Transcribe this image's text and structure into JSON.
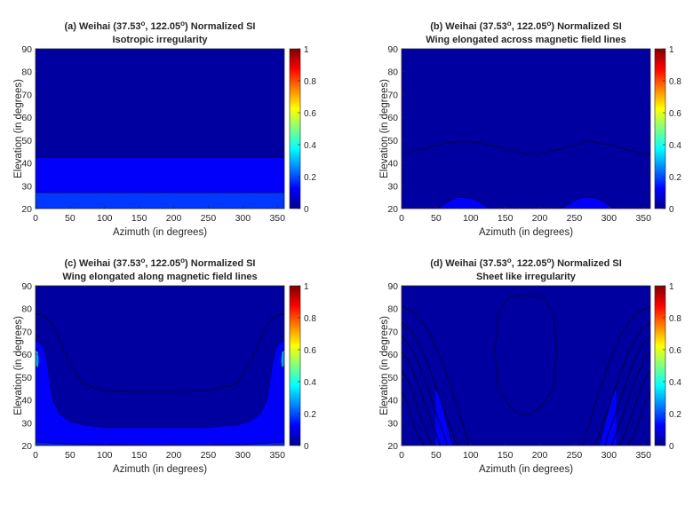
{
  "colormap": [
    "#00008f",
    "#0000ff",
    "#0080ff",
    "#00ffff",
    "#80ff80",
    "#ffff00",
    "#ff8000",
    "#ff0000",
    "#800000"
  ],
  "chart_data": [
    {
      "type": "heatmap",
      "title_station": "(a) Weihai (37.53",
      "title_mid": ", 122.05",
      "title_end": ") Normalized SI",
      "subtitle": "Isotropic irregularity",
      "xlabel": "Azimuth (in degrees)",
      "ylabel": "Elevation (in degrees)",
      "xlim": [
        0,
        360
      ],
      "ylim": [
        20,
        90
      ],
      "x_ticks": [
        0,
        50,
        100,
        150,
        200,
        250,
        300,
        350
      ],
      "y_ticks": [
        20,
        30,
        40,
        50,
        60,
        70,
        80,
        90
      ],
      "colorbar_ticks": [
        0,
        0.2,
        0.4,
        0.6,
        0.8,
        1
      ],
      "zlim": [
        0,
        1
      ],
      "elevation_bands": [
        {
          "el_from": 42.5,
          "el_to": 90,
          "si_level": 0.02
        },
        {
          "el_from": 27,
          "el_to": 42.5,
          "si_level": 0.12
        },
        {
          "el_from": 20,
          "el_to": 27,
          "si_level": 0.18
        }
      ]
    },
    {
      "type": "heatmap",
      "title_station": "(b) Weihai (37.53",
      "title_mid": ", 122.05",
      "title_end": ") Normalized SI",
      "subtitle": "Wing elongated across magnetic field lines",
      "xlabel": "Azimuth (in degrees)",
      "ylabel": "Elevation (in degrees)",
      "xlim": [
        0,
        360
      ],
      "ylim": [
        20,
        90
      ],
      "x_ticks": [
        0,
        50,
        100,
        150,
        200,
        250,
        300,
        350
      ],
      "y_ticks": [
        20,
        30,
        40,
        50,
        60,
        70,
        80,
        90
      ],
      "colorbar_ticks": [
        0,
        0.2,
        0.4,
        0.6,
        0.8,
        1
      ],
      "zlim": [
        0,
        1
      ],
      "contour_lines": [
        {
          "azimuth": [
            0,
            30,
            60,
            90,
            120,
            150,
            180,
            200,
            230,
            270,
            300,
            330,
            360
          ],
          "elevation": [
            44,
            46,
            48.5,
            49.5,
            48.5,
            46,
            44,
            44,
            46,
            49.5,
            48,
            45.5,
            43.5
          ]
        }
      ],
      "filled_regions": [
        {
          "si_level": 0.12,
          "azimuth": [
            52,
            60,
            70,
            80,
            90,
            100,
            110,
            120,
            128,
            52
          ],
          "elevation": [
            20,
            21.5,
            23.5,
            24.8,
            25,
            24.6,
            23.4,
            21.5,
            20,
            20
          ]
        },
        {
          "si_level": 0.12,
          "azimuth": [
            230,
            240,
            250,
            260,
            270,
            280,
            290,
            300,
            308,
            230
          ],
          "elevation": [
            20,
            21.5,
            23.5,
            24.8,
            25,
            24.6,
            23.4,
            21.5,
            20,
            20
          ]
        }
      ]
    },
    {
      "type": "heatmap",
      "title_station": "(c) Weihai (37.53",
      "title_mid": ", 122.05",
      "title_end": ") Normalized SI",
      "subtitle": "Wing elongated along magnetic field lines",
      "xlabel": "Azimuth (in degrees)",
      "ylabel": "Elevation (in degrees)",
      "xlim": [
        0,
        360
      ],
      "ylim": [
        20,
        90
      ],
      "x_ticks": [
        0,
        50,
        100,
        150,
        200,
        250,
        300,
        350
      ],
      "y_ticks": [
        20,
        30,
        40,
        50,
        60,
        70,
        80,
        90
      ],
      "colorbar_ticks": [
        0,
        0.2,
        0.4,
        0.6,
        0.8,
        1
      ],
      "zlim": [
        0,
        1
      ],
      "contour_lines": [
        {
          "azimuth": [
            0,
            10,
            20,
            30,
            40,
            55,
            70,
            100,
            150,
            200,
            250,
            290,
            305,
            320,
            330,
            340,
            350,
            360
          ],
          "elevation": [
            78,
            77,
            75,
            70,
            62,
            53,
            47,
            44,
            43.5,
            43.5,
            44,
            47,
            53,
            62,
            70,
            75,
            77,
            78
          ]
        }
      ],
      "filled_regions": [
        {
          "si_level": 0.12,
          "azimuth": [
            0,
            10,
            16,
            20,
            25,
            35,
            50,
            70,
            100,
            150,
            200,
            250,
            290,
            310,
            325,
            335,
            340,
            344,
            350,
            360,
            360,
            0
          ],
          "elevation": [
            66,
            64,
            58,
            50,
            40,
            34,
            30.5,
            29,
            28,
            28,
            28,
            28,
            29,
            30.5,
            34,
            40,
            50,
            58,
            64,
            66,
            20,
            20
          ]
        },
        {
          "si_level": 0.16,
          "azimuth": [
            0,
            40,
            90,
            150,
            200,
            250,
            300,
            320,
            360,
            360,
            0
          ],
          "elevation": [
            21.5,
            20.8,
            20.4,
            20.2,
            20.2,
            20.2,
            20.4,
            20.8,
            21.5,
            20,
            20
          ]
        },
        {
          "si_level": 0.28,
          "azimuth": [
            0,
            4,
            5,
            4,
            0
          ],
          "elevation": [
            62,
            61,
            57,
            54,
            55
          ]
        },
        {
          "si_level": 0.28,
          "azimuth": [
            360,
            356,
            355,
            356,
            360
          ],
          "elevation": [
            62,
            61,
            57,
            54,
            55
          ]
        }
      ]
    },
    {
      "type": "heatmap",
      "title_station": "(d) Weihai (37.53",
      "title_mid": ", 122.05",
      "title_end": ") Normalized SI",
      "subtitle": "Sheet like irregularity",
      "xlabel": "Azimuth (in degrees)",
      "ylabel": "Elevation (in degrees)",
      "xlim": [
        0,
        360
      ],
      "ylim": [
        20,
        90
      ],
      "x_ticks": [
        0,
        50,
        100,
        150,
        200,
        250,
        300,
        350
      ],
      "y_ticks": [
        20,
        30,
        40,
        50,
        60,
        70,
        80,
        90
      ],
      "colorbar_ticks": [
        0,
        0.2,
        0.4,
        0.6,
        0.8,
        1
      ],
      "zlim": [
        0,
        1
      ],
      "contour_lines": [
        {
          "azimuth": [
            180,
            155,
            140,
            135,
            140,
            160,
            180,
            200,
            220,
            225,
            220,
            205,
            180
          ],
          "elevation": [
            86,
            85,
            78,
            62,
            45,
            36,
            33,
            36,
            45,
            62,
            78,
            85,
            86
          ]
        },
        {
          "azimuth": [
            0,
            20,
            40,
            60,
            78,
            90,
            98
          ],
          "elevation": [
            81,
            78,
            70,
            56,
            40,
            28,
            20
          ]
        },
        {
          "azimuth": [
            0,
            15,
            30,
            45,
            60,
            72,
            80
          ],
          "elevation": [
            74,
            70,
            62,
            50,
            37,
            27,
            20
          ]
        },
        {
          "azimuth": [
            0,
            12,
            25,
            38,
            50,
            60,
            66
          ],
          "elevation": [
            68,
            64,
            56,
            45,
            34,
            26,
            20
          ]
        },
        {
          "azimuth": [
            0,
            10,
            20,
            32,
            42,
            50,
            56
          ],
          "elevation": [
            61,
            57,
            50,
            40,
            31,
            25,
            20
          ]
        },
        {
          "azimuth": [
            0,
            8,
            16,
            25,
            33,
            40,
            45
          ],
          "elevation": [
            53,
            49,
            43,
            35,
            28,
            23,
            20
          ]
        },
        {
          "azimuth": [
            0,
            6,
            12,
            18,
            24,
            29,
            32
          ],
          "elevation": [
            44,
            40,
            35,
            29,
            24,
            22,
            20
          ]
        },
        {
          "azimuth": [
            360,
            340,
            320,
            300,
            282,
            270,
            262
          ],
          "elevation": [
            81,
            78,
            70,
            56,
            40,
            28,
            20
          ]
        },
        {
          "azimuth": [
            360,
            345,
            330,
            315,
            300,
            288,
            280
          ],
          "elevation": [
            74,
            70,
            62,
            50,
            37,
            27,
            20
          ]
        },
        {
          "azimuth": [
            360,
            348,
            335,
            322,
            310,
            300,
            294
          ],
          "elevation": [
            68,
            64,
            56,
            45,
            34,
            26,
            20
          ]
        },
        {
          "azimuth": [
            360,
            350,
            340,
            328,
            318,
            310,
            304
          ],
          "elevation": [
            61,
            57,
            50,
            40,
            31,
            25,
            20
          ]
        },
        {
          "azimuth": [
            360,
            352,
            344,
            335,
            327,
            320,
            315
          ],
          "elevation": [
            53,
            49,
            43,
            35,
            28,
            23,
            20
          ]
        },
        {
          "azimuth": [
            360,
            354,
            348,
            342,
            336,
            331,
            328
          ],
          "elevation": [
            44,
            40,
            35,
            29,
            24,
            22,
            20
          ]
        }
      ],
      "filled_regions": [
        {
          "si_level": 0.12,
          "azimuth": [
            48,
            52,
            57,
            62,
            67,
            70,
            73,
            77,
            77,
            48
          ],
          "elevation": [
            45,
            44,
            40,
            34,
            28,
            24,
            21,
            20,
            20,
            20
          ]
        },
        {
          "si_level": 0.12,
          "azimuth": [
            312,
            308,
            303,
            298,
            293,
            290,
            287,
            283,
            283,
            312
          ],
          "elevation": [
            45,
            44,
            40,
            34,
            28,
            24,
            21,
            20,
            20,
            20
          ]
        }
      ]
    }
  ]
}
